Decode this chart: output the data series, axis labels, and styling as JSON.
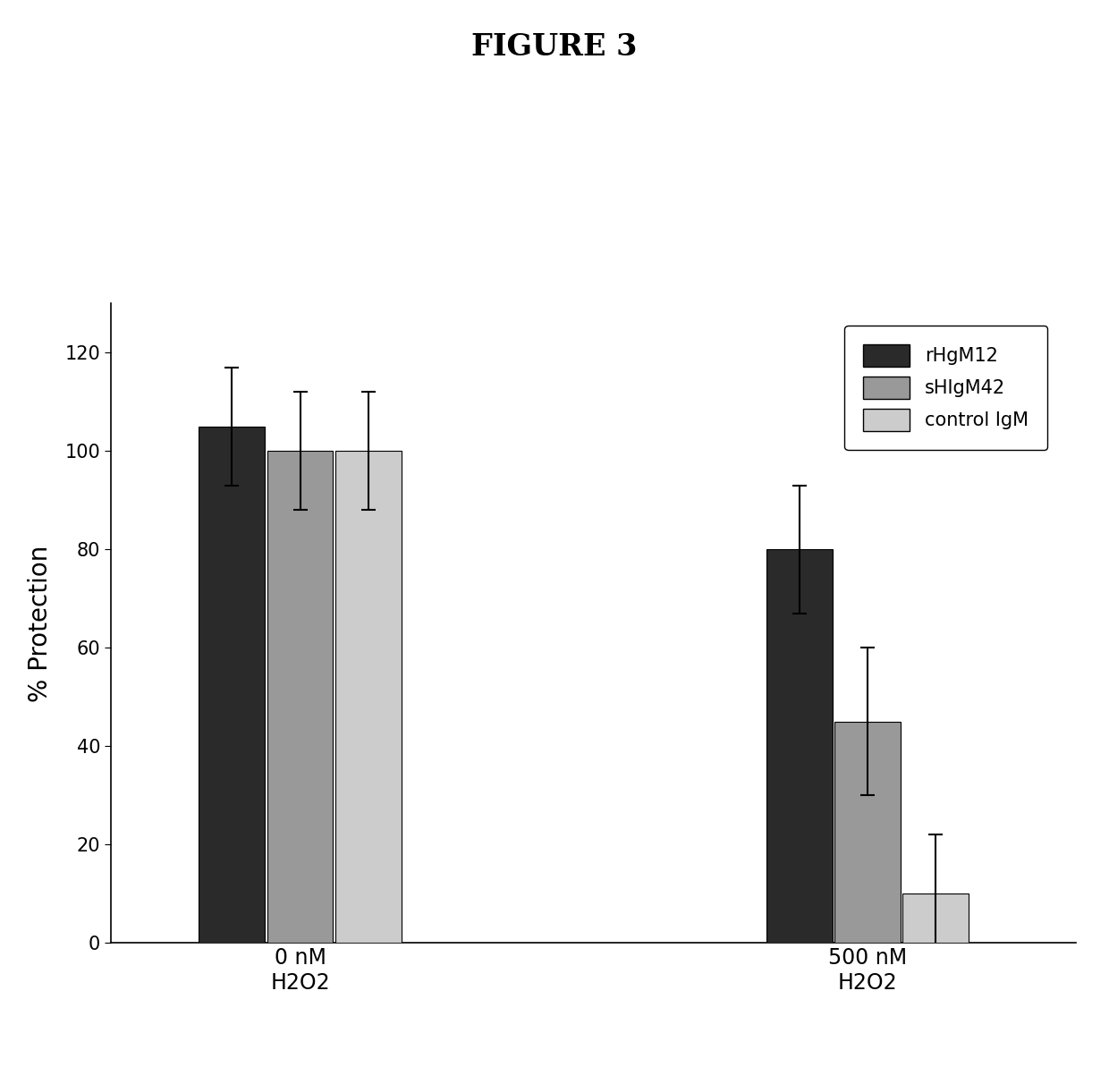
{
  "title": "FIGURE 3",
  "ylabel": "% Protection",
  "groups": [
    "0 nM\nH2O2",
    "500 nM\nH2O2"
  ],
  "series": [
    "rHgM12",
    "sHIgM42",
    "control IgM"
  ],
  "values": [
    [
      105,
      100,
      100
    ],
    [
      80,
      45,
      10
    ]
  ],
  "errors": [
    [
      12,
      12,
      12
    ],
    [
      13,
      15,
      12
    ]
  ],
  "colors": [
    "#2a2a2a",
    "#999999",
    "#cccccc"
  ],
  "bar_width": 0.18,
  "group_centers": [
    1.0,
    2.5
  ],
  "ylim": [
    0,
    130
  ],
  "yticks": [
    0,
    20,
    40,
    60,
    80,
    100,
    120
  ],
  "title_fontsize": 24,
  "label_fontsize": 18,
  "tick_fontsize": 15,
  "legend_fontsize": 15
}
